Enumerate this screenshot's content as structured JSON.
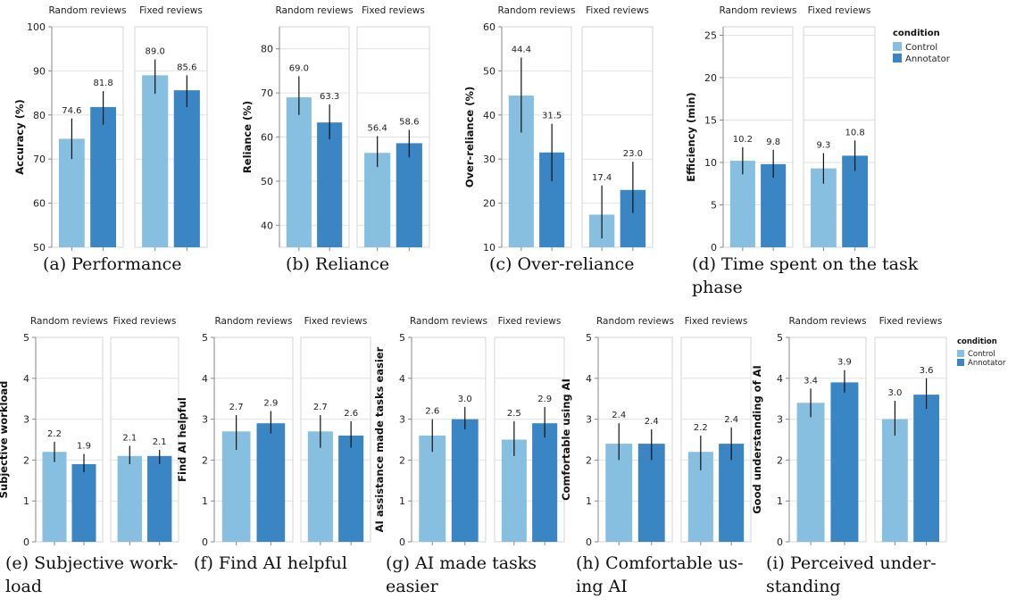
{
  "legend": {
    "title": "condition",
    "items": [
      {
        "label": "Control",
        "color": "#86bfe0"
      },
      {
        "label": "Annotator",
        "color": "#3a86c4"
      }
    ]
  },
  "chart_data": [
    {
      "type": "bar",
      "caption": "(a) Performance",
      "ylabel": "Accuracy (%)",
      "ylim": [
        50,
        100
      ],
      "yticks": [
        50,
        60,
        70,
        80,
        90,
        100
      ],
      "facets": [
        "Random reviews",
        "Fixed reviews"
      ],
      "series": [
        {
          "name": "Control",
          "values": [
            74.6,
            89.0
          ],
          "ci_low": [
            70.0,
            84.8
          ],
          "ci_high": [
            79.2,
            92.6
          ]
        },
        {
          "name": "Annotator",
          "values": [
            81.8,
            85.6
          ],
          "ci_low": [
            77.8,
            81.8
          ],
          "ci_high": [
            85.4,
            89.0
          ]
        }
      ],
      "value_labels": [
        [
          "74.6",
          "89.0"
        ],
        [
          "81.8",
          "85.6"
        ]
      ]
    },
    {
      "type": "bar",
      "caption": "(b) Reliance",
      "ylabel": "Reliance (%)",
      "ylim": [
        35,
        85
      ],
      "yticks": [
        40,
        50,
        60,
        70,
        80
      ],
      "facets": [
        "Random reviews",
        "Fixed reviews"
      ],
      "series": [
        {
          "name": "Control",
          "values": [
            69.0,
            56.4
          ],
          "ci_low": [
            65.0,
            53.2
          ],
          "ci_high": [
            73.8,
            60.2
          ]
        },
        {
          "name": "Annotator",
          "values": [
            63.3,
            58.6
          ],
          "ci_low": [
            59.5,
            55.4
          ],
          "ci_high": [
            67.4,
            61.6
          ]
        }
      ],
      "value_labels": [
        [
          "69.0",
          "56.4"
        ],
        [
          "63.3",
          "58.6"
        ]
      ]
    },
    {
      "type": "bar",
      "caption": "(c) Over-reliance",
      "ylabel": "Over-reliance (%)",
      "ylim": [
        10,
        60
      ],
      "yticks": [
        10,
        20,
        30,
        40,
        50,
        60
      ],
      "facets": [
        "Random reviews",
        "Fixed reviews"
      ],
      "series": [
        {
          "name": "Control",
          "values": [
            44.4,
            17.4
          ],
          "ci_low": [
            36.0,
            12.0
          ],
          "ci_high": [
            53.0,
            24.0
          ]
        },
        {
          "name": "Annotator",
          "values": [
            31.5,
            23.0
          ],
          "ci_low": [
            25.0,
            17.8
          ],
          "ci_high": [
            38.0,
            29.4
          ]
        }
      ],
      "value_labels": [
        [
          "44.4",
          "17.4"
        ],
        [
          "31.5",
          "23.0"
        ]
      ]
    },
    {
      "type": "bar",
      "caption": "(d) Time spent on the task phase",
      "ylabel": "Efficiency (min)",
      "ylim": [
        0,
        26
      ],
      "yticks": [
        0,
        5,
        10,
        15,
        20,
        25
      ],
      "facets": [
        "Random reviews",
        "Fixed reviews"
      ],
      "series": [
        {
          "name": "Control",
          "values": [
            10.2,
            9.3
          ],
          "ci_low": [
            8.6,
            7.5
          ],
          "ci_high": [
            11.8,
            11.1
          ]
        },
        {
          "name": "Annotator",
          "values": [
            9.8,
            10.8
          ],
          "ci_low": [
            8.2,
            9.0
          ],
          "ci_high": [
            11.5,
            12.6
          ]
        }
      ],
      "value_labels": [
        [
          "10.2",
          "9.3"
        ],
        [
          "9.8",
          "10.8"
        ]
      ]
    },
    {
      "type": "bar",
      "caption": "(e) Subjective workload",
      "ylabel": "Subjective workload",
      "ylim": [
        0,
        5
      ],
      "yticks": [
        0,
        1,
        2,
        3,
        4,
        5
      ],
      "facets": [
        "Random reviews",
        "Fixed reviews"
      ],
      "series": [
        {
          "name": "Control",
          "values": [
            2.2,
            2.1
          ],
          "ci_low": [
            1.95,
            1.9
          ],
          "ci_high": [
            2.45,
            2.35
          ]
        },
        {
          "name": "Annotator",
          "values": [
            1.9,
            2.1
          ],
          "ci_low": [
            1.7,
            1.9
          ],
          "ci_high": [
            2.15,
            2.25
          ]
        }
      ],
      "value_labels": [
        [
          "2.2",
          "2.1"
        ],
        [
          "1.9",
          "2.1"
        ]
      ]
    },
    {
      "type": "bar",
      "caption": "(f) Find AI helpful",
      "ylabel": "Find AI helpful",
      "ylim": [
        0,
        5
      ],
      "yticks": [
        0,
        1,
        2,
        3,
        4,
        5
      ],
      "facets": [
        "Random reviews",
        "Fixed reviews"
      ],
      "series": [
        {
          "name": "Control",
          "values": [
            2.7,
            2.7
          ],
          "ci_low": [
            2.25,
            2.3
          ],
          "ci_high": [
            3.1,
            3.1
          ]
        },
        {
          "name": "Annotator",
          "values": [
            2.9,
            2.6
          ],
          "ci_low": [
            2.65,
            2.3
          ],
          "ci_high": [
            3.2,
            2.95
          ]
        }
      ],
      "value_labels": [
        [
          "2.7",
          "2.7"
        ],
        [
          "2.9",
          "2.6"
        ]
      ]
    },
    {
      "type": "bar",
      "caption": "(g) AI made tasks easier",
      "ylabel": "AI assistance made tasks easier",
      "ylim": [
        0,
        5
      ],
      "yticks": [
        0,
        1,
        2,
        3,
        4,
        5
      ],
      "facets": [
        "Random reviews",
        "Fixed reviews"
      ],
      "series": [
        {
          "name": "Control",
          "values": [
            2.6,
            2.5
          ],
          "ci_low": [
            2.2,
            2.1
          ],
          "ci_high": [
            3.0,
            2.95
          ]
        },
        {
          "name": "Annotator",
          "values": [
            3.0,
            2.9
          ],
          "ci_low": [
            2.75,
            2.55
          ],
          "ci_high": [
            3.3,
            3.3
          ]
        }
      ],
      "value_labels": [
        [
          "2.6",
          "2.5"
        ],
        [
          "3.0",
          "2.9"
        ]
      ]
    },
    {
      "type": "bar",
      "caption": "(h) Comfortable using AI",
      "ylabel": "Comfortable using AI",
      "ylim": [
        0,
        5
      ],
      "yticks": [
        0,
        1,
        2,
        3,
        4,
        5
      ],
      "facets": [
        "Random reviews",
        "Fixed reviews"
      ],
      "series": [
        {
          "name": "Control",
          "values": [
            2.4,
            2.2
          ],
          "ci_low": [
            2.0,
            1.75
          ],
          "ci_high": [
            2.9,
            2.6
          ]
        },
        {
          "name": "Annotator",
          "values": [
            2.4,
            2.4
          ],
          "ci_low": [
            2.0,
            2.0
          ],
          "ci_high": [
            2.75,
            2.8
          ]
        }
      ],
      "value_labels": [
        [
          "2.4",
          "2.2"
        ],
        [
          "2.4",
          "2.4"
        ]
      ]
    },
    {
      "type": "bar",
      "caption": "(i) Perceived understanding",
      "ylabel": "Good understanding of AI",
      "ylim": [
        0,
        5
      ],
      "yticks": [
        0,
        1,
        2,
        3,
        4,
        5
      ],
      "facets": [
        "Random reviews",
        "Fixed reviews"
      ],
      "series": [
        {
          "name": "Control",
          "values": [
            3.4,
            3.0
          ],
          "ci_low": [
            3.05,
            2.6
          ],
          "ci_high": [
            3.75,
            3.45
          ]
        },
        {
          "name": "Annotator",
          "values": [
            3.9,
            3.6
          ],
          "ci_low": [
            3.65,
            3.25
          ],
          "ci_high": [
            4.2,
            4.0
          ]
        }
      ],
      "value_labels": [
        [
          "3.4",
          "3.0"
        ],
        [
          "3.9",
          "3.6"
        ]
      ]
    }
  ]
}
